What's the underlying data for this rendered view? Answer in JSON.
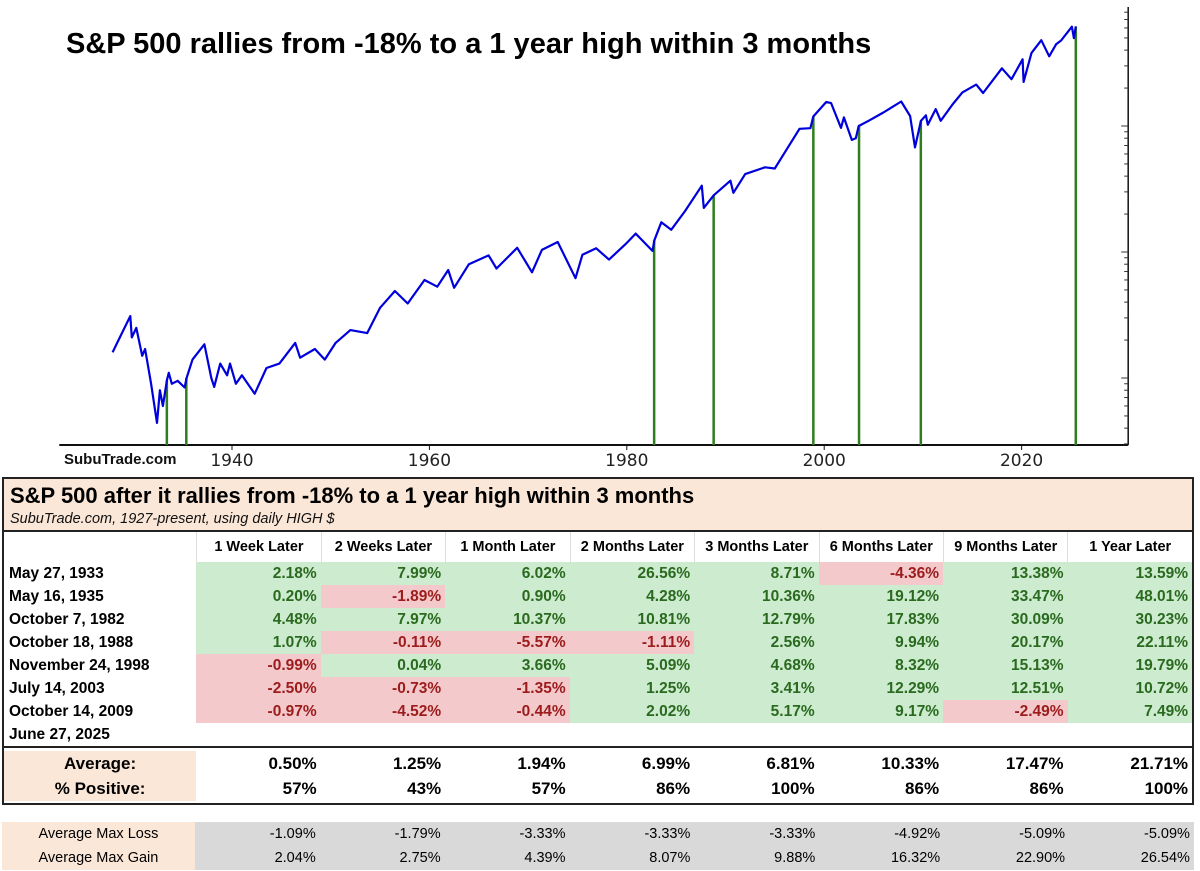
{
  "chart_data": {
    "type": "line",
    "title": "S&P 500 rallies from -18% to a 1 year high within 3 months",
    "watermark": "SubuTrade.com",
    "y_scale": "log",
    "grid": false,
    "xlim": [
      1922.5,
      2030.8
    ],
    "ylim": [
      2.9,
      8800
    ],
    "x_ticks": [
      "1940",
      "1960",
      "1980",
      "2000",
      "2020"
    ],
    "line_color": "#0000dd",
    "event_color": "#2e7d1e",
    "series": [
      {
        "points": [
          [
            1927.9,
            16
          ],
          [
            1928.5,
            20
          ],
          [
            1929.0,
            24
          ],
          [
            1929.7,
            31
          ],
          [
            1929.85,
            21
          ],
          [
            1930.3,
            25
          ],
          [
            1930.9,
            15
          ],
          [
            1931.2,
            17
          ],
          [
            1931.8,
            9
          ],
          [
            1932.4,
            4.4
          ],
          [
            1932.7,
            8
          ],
          [
            1933.0,
            6
          ],
          [
            1933.4,
            9.6
          ],
          [
            1933.6,
            11
          ],
          [
            1933.9,
            9
          ],
          [
            1934.5,
            9.5
          ],
          [
            1935.2,
            8.4
          ],
          [
            1935.4,
            10
          ],
          [
            1936.0,
            14
          ],
          [
            1937.2,
            18.5
          ],
          [
            1937.9,
            10
          ],
          [
            1938.2,
            8.5
          ],
          [
            1938.8,
            13
          ],
          [
            1939.5,
            10.5
          ],
          [
            1939.8,
            13
          ],
          [
            1940.4,
            9
          ],
          [
            1941.0,
            10.5
          ],
          [
            1942.3,
            7.5
          ],
          [
            1943.5,
            12
          ],
          [
            1944.8,
            13
          ],
          [
            1946.4,
            19
          ],
          [
            1946.9,
            14.5
          ],
          [
            1948.4,
            17
          ],
          [
            1949.4,
            14
          ],
          [
            1950.5,
            19
          ],
          [
            1952.0,
            24
          ],
          [
            1953.7,
            22.7
          ],
          [
            1955.0,
            36
          ],
          [
            1956.5,
            49
          ],
          [
            1957.8,
            39
          ],
          [
            1959.5,
            60
          ],
          [
            1960.8,
            53
          ],
          [
            1961.9,
            72
          ],
          [
            1962.5,
            52
          ],
          [
            1964.0,
            80
          ],
          [
            1966.0,
            94
          ],
          [
            1966.8,
            74
          ],
          [
            1968.9,
            108
          ],
          [
            1970.4,
            69
          ],
          [
            1971.4,
            104
          ],
          [
            1973.0,
            120
          ],
          [
            1974.8,
            62
          ],
          [
            1975.5,
            95
          ],
          [
            1976.9,
            107
          ],
          [
            1978.2,
            87
          ],
          [
            1980.0,
            118
          ],
          [
            1980.9,
            140
          ],
          [
            1982.6,
            102
          ],
          [
            1982.8,
            124
          ],
          [
            1983.5,
            172
          ],
          [
            1984.5,
            150
          ],
          [
            1985.9,
            211
          ],
          [
            1987.6,
            336
          ],
          [
            1987.8,
            224
          ],
          [
            1988.8,
            282
          ],
          [
            1990.5,
            368
          ],
          [
            1990.8,
            295
          ],
          [
            1992.0,
            415
          ],
          [
            1994.0,
            470
          ],
          [
            1995.0,
            460
          ],
          [
            1996.0,
            615
          ],
          [
            1997.5,
            950
          ],
          [
            1998.6,
            960
          ],
          [
            1998.9,
            1190
          ],
          [
            2000.2,
            1550
          ],
          [
            2000.7,
            1520
          ],
          [
            2001.7,
            965
          ],
          [
            2002.0,
            1170
          ],
          [
            2002.8,
            776
          ],
          [
            2003.2,
            800
          ],
          [
            2003.5,
            1000
          ],
          [
            2004.5,
            1100
          ],
          [
            2006.0,
            1280
          ],
          [
            2007.8,
            1565
          ],
          [
            2008.7,
            1200
          ],
          [
            2009.2,
            676
          ],
          [
            2009.8,
            1097
          ],
          [
            2010.3,
            1217
          ],
          [
            2010.5,
            1022
          ],
          [
            2011.3,
            1363
          ],
          [
            2011.8,
            1099
          ],
          [
            2013.0,
            1480
          ],
          [
            2014.0,
            1848
          ],
          [
            2015.4,
            2130
          ],
          [
            2016.1,
            1829
          ],
          [
            2018.0,
            2872
          ],
          [
            2018.98,
            2351
          ],
          [
            2020.1,
            3386
          ],
          [
            2020.2,
            2237
          ],
          [
            2021.0,
            3800
          ],
          [
            2022.0,
            4796
          ],
          [
            2022.8,
            3577
          ],
          [
            2023.5,
            4450
          ],
          [
            2024.0,
            4770
          ],
          [
            2025.1,
            6144
          ],
          [
            2025.3,
            4982
          ],
          [
            2025.49,
            6173
          ]
        ]
      }
    ],
    "events": [
      {
        "date": "May 27, 1933",
        "x": 1933.4,
        "value": 9.6
      },
      {
        "date": "May 16, 1935",
        "x": 1935.37,
        "value": 10.0
      },
      {
        "date": "October 7, 1982",
        "x": 1982.77,
        "value": 124
      },
      {
        "date": "October 18, 1988",
        "x": 1988.8,
        "value": 282
      },
      {
        "date": "November 24, 1998",
        "x": 1998.9,
        "value": 1190
      },
      {
        "date": "July 14, 2003",
        "x": 2003.53,
        "value": 1000
      },
      {
        "date": "October 14, 2009",
        "x": 2009.79,
        "value": 1097
      },
      {
        "date": "June 27, 2025",
        "x": 2025.49,
        "value": 6173
      }
    ]
  },
  "table": {
    "title": "S&P 500 after it rallies from -18% to a 1 year high within 3 months",
    "subtitle": "SubuTrade.com, 1927-present, using daily HIGH $",
    "columns": [
      "1 Week Later",
      "2 Weeks Later",
      "1 Month Later",
      "2 Months Later",
      "3 Months Later",
      "6 Months Later",
      "9 Months Later",
      "1 Year Later"
    ],
    "rows": [
      {
        "date": "May 27, 1933",
        "values": [
          "2.18%",
          "7.99%",
          "6.02%",
          "26.56%",
          "8.71%",
          "-4.36%",
          "13.38%",
          "13.59%"
        ]
      },
      {
        "date": "May 16, 1935",
        "values": [
          "0.20%",
          "-1.89%",
          "0.90%",
          "4.28%",
          "10.36%",
          "19.12%",
          "33.47%",
          "48.01%"
        ]
      },
      {
        "date": "October 7, 1982",
        "values": [
          "4.48%",
          "7.97%",
          "10.37%",
          "10.81%",
          "12.79%",
          "17.83%",
          "30.09%",
          "30.23%"
        ]
      },
      {
        "date": "October 18, 1988",
        "values": [
          "1.07%",
          "-0.11%",
          "-5.57%",
          "-1.11%",
          "2.56%",
          "9.94%",
          "20.17%",
          "22.11%"
        ]
      },
      {
        "date": "November 24, 1998",
        "values": [
          "-0.99%",
          "0.04%",
          "3.66%",
          "5.09%",
          "4.68%",
          "8.32%",
          "15.13%",
          "19.79%"
        ]
      },
      {
        "date": "July 14, 2003",
        "values": [
          "-2.50%",
          "-0.73%",
          "-1.35%",
          "1.25%",
          "3.41%",
          "12.29%",
          "12.51%",
          "10.72%"
        ]
      },
      {
        "date": "October 14, 2009",
        "values": [
          "-0.97%",
          "-4.52%",
          "-0.44%",
          "2.02%",
          "5.17%",
          "9.17%",
          "-2.49%",
          "7.49%"
        ]
      },
      {
        "date": "June 27, 2025",
        "values": [
          "",
          "",
          "",
          "",
          "",
          "",
          "",
          ""
        ]
      }
    ],
    "summary": [
      {
        "label": "Average:",
        "values": [
          "0.50%",
          "1.25%",
          "1.94%",
          "6.99%",
          "6.81%",
          "10.33%",
          "17.47%",
          "21.71%"
        ]
      },
      {
        "label": "% Positive:",
        "values": [
          "57%",
          "43%",
          "57%",
          "86%",
          "100%",
          "86%",
          "86%",
          "100%"
        ]
      }
    ],
    "max_rows": [
      {
        "label": "Average Max Loss",
        "values": [
          "-1.09%",
          "-1.79%",
          "-3.33%",
          "-3.33%",
          "-3.33%",
          "-4.92%",
          "-5.09%",
          "-5.09%"
        ]
      },
      {
        "label": "Average Max Gain",
        "values": [
          "2.04%",
          "2.75%",
          "4.39%",
          "8.07%",
          "9.88%",
          "16.32%",
          "22.90%",
          "26.54%"
        ]
      }
    ],
    "colors": {
      "positive_bg": "#cdebcf",
      "positive_text": "#2a6a1f",
      "negative_bg": "#f3c9cc",
      "negative_text": "#9c1c1c",
      "header_bg": "#fbe7d8",
      "stat_bg": "#d9d9d9"
    }
  }
}
